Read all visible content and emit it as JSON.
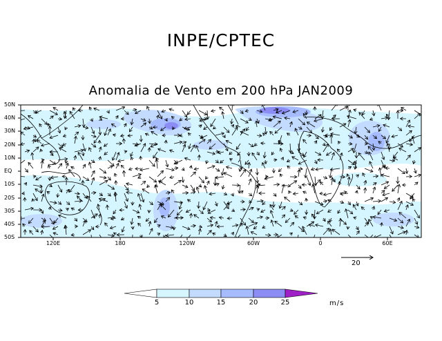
{
  "header": {
    "org": "INPE/CPTEC"
  },
  "map": {
    "title": "Anomalia de Vento em 200 hPa JAN2009",
    "lat_labels": [
      "50N",
      "40N",
      "30N",
      "20N",
      "10N",
      "EQ",
      "10S",
      "20S",
      "30S",
      "40S",
      "50S"
    ],
    "lon_labels": [
      "120E",
      "180",
      "120W",
      "60W",
      "0",
      "60E"
    ]
  },
  "reference_vector": {
    "value": "20"
  },
  "colorbar": {
    "labels": [
      "5",
      "10",
      "15",
      "20",
      "25"
    ],
    "units": "m/s",
    "colors": [
      "#ffffff",
      "#d6f6ff",
      "#c2dbff",
      "#a6bcff",
      "#8c8cf5",
      "#6464e6",
      "#a020c8"
    ]
  }
}
